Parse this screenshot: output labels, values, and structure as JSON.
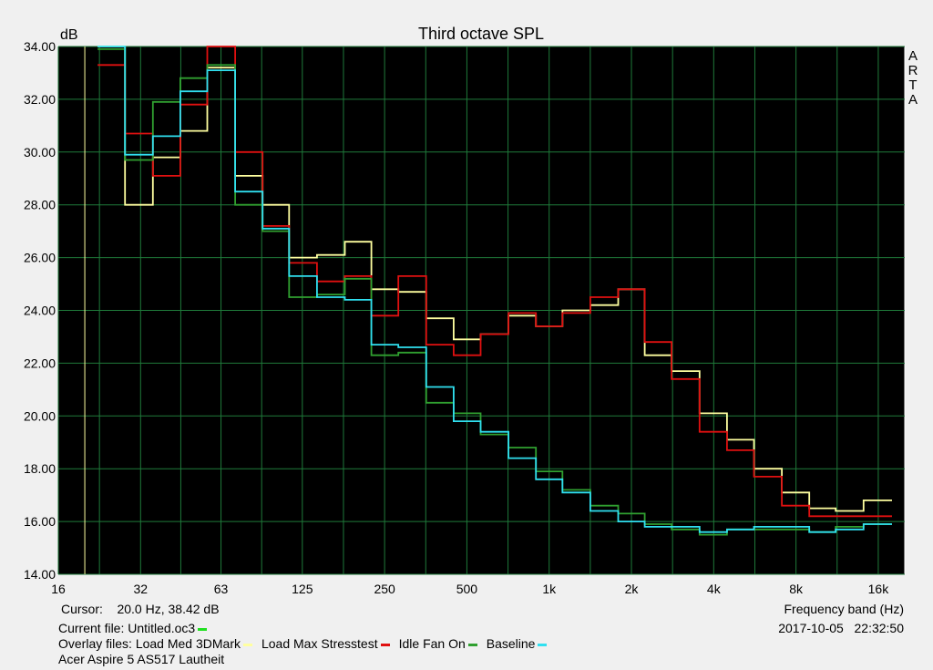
{
  "chart_data": {
    "type": "line",
    "title": "Third octave SPL",
    "ylabel": "dB",
    "xlabel": "Frequency band (Hz)",
    "watermark": [
      "A",
      "R",
      "T",
      "A"
    ],
    "ylim": [
      14,
      34
    ],
    "y_ticks": [
      "14.00",
      "16.00",
      "18.00",
      "20.00",
      "22.00",
      "24.00",
      "26.00",
      "28.00",
      "30.00",
      "32.00",
      "34.00"
    ],
    "x_ticks": [
      {
        "label": "16",
        "hz": 16
      },
      {
        "label": "32",
        "hz": 32
      },
      {
        "label": "63",
        "hz": 63
      },
      {
        "label": "125",
        "hz": 125
      },
      {
        "label": "250",
        "hz": 250
      },
      {
        "label": "500",
        "hz": 500
      },
      {
        "label": "1k",
        "hz": 1000
      },
      {
        "label": "2k",
        "hz": 2000
      },
      {
        "label": "4k",
        "hz": 4000
      },
      {
        "label": "8k",
        "hz": 8000
      },
      {
        "label": "16k",
        "hz": 16000
      }
    ],
    "xlim_hz": [
      16,
      20000
    ],
    "cursor_hz": 20,
    "bands_hz": [
      25,
      31.5,
      40,
      50,
      63,
      80,
      100,
      125,
      160,
      200,
      250,
      315,
      400,
      500,
      630,
      800,
      1000,
      1250,
      1600,
      2000,
      2500,
      3150,
      4000,
      5000,
      6300,
      8000,
      10000,
      12500,
      16000
    ],
    "series": [
      {
        "name": "Load Med 3DMark",
        "color": "#ffffa0",
        "values": [
          34.5,
          28.0,
          29.8,
          30.8,
          33.2,
          29.1,
          28.0,
          26.0,
          26.1,
          26.6,
          24.8,
          24.7,
          23.7,
          22.9,
          23.1,
          23.8,
          23.4,
          24.0,
          24.2,
          24.8,
          22.3,
          21.7,
          20.1,
          19.1,
          18.0,
          17.1,
          16.5,
          16.4,
          16.8
        ]
      },
      {
        "name": "Load Max Stresstest",
        "color": "#e01010",
        "values": [
          33.3,
          30.7,
          29.1,
          31.8,
          34.5,
          30.0,
          27.2,
          25.8,
          25.1,
          25.3,
          23.8,
          25.3,
          22.7,
          22.3,
          23.1,
          23.9,
          23.4,
          23.9,
          24.5,
          24.8,
          22.8,
          21.4,
          19.4,
          18.7,
          17.7,
          16.6,
          16.2,
          16.2,
          16.2
        ]
      },
      {
        "name": "Idle Fan On",
        "color": "#30a030",
        "values": [
          33.9,
          29.7,
          31.9,
          32.8,
          33.3,
          28.0,
          27.0,
          24.5,
          24.6,
          25.2,
          22.3,
          22.4,
          20.5,
          20.1,
          19.3,
          18.8,
          17.9,
          17.2,
          16.6,
          16.3,
          15.9,
          15.7,
          15.5,
          15.7,
          15.7,
          15.7,
          15.6,
          15.8,
          15.9
        ]
      },
      {
        "name": "Baseline",
        "color": "#30e0f0",
        "values": [
          34.5,
          29.9,
          30.6,
          32.3,
          33.1,
          28.5,
          27.1,
          25.3,
          24.5,
          24.4,
          22.7,
          22.6,
          21.1,
          19.8,
          19.4,
          18.4,
          17.6,
          17.1,
          16.4,
          16.0,
          15.8,
          15.8,
          15.6,
          15.7,
          15.8,
          15.8,
          15.6,
          15.7,
          15.9
        ]
      }
    ]
  },
  "footer": {
    "cursor_label": "Cursor:",
    "cursor_value": "20.0 Hz, 38.42 dB",
    "freq_label": "Frequency band (Hz)",
    "current_file_label": "Current file:",
    "current_file_value": "Untitled.oc3",
    "current_file_color": "#20e020",
    "timestamp": "2017-10-05   22:32:50",
    "overlay_label": "Overlay files:",
    "device": "Acer Aspire 5 AS517 Lautheit"
  }
}
